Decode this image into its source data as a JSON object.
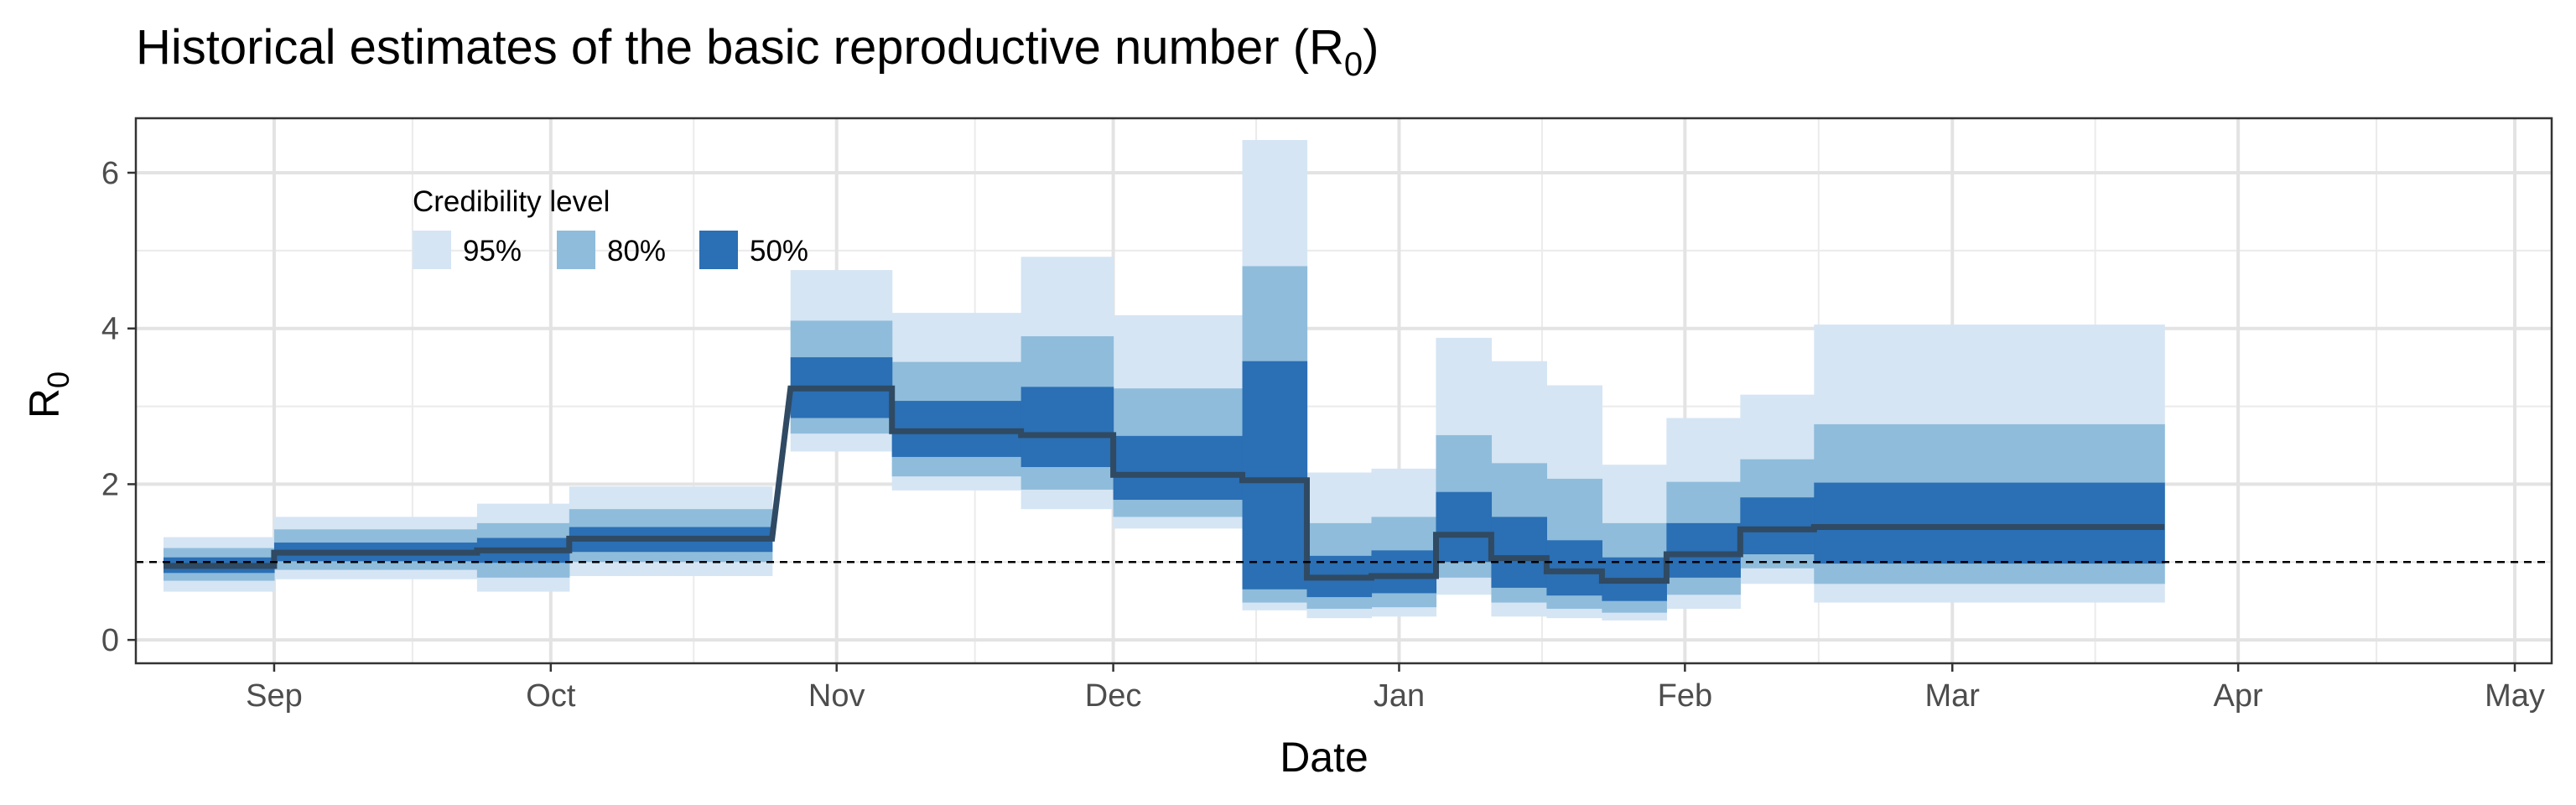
{
  "chart_data": {
    "type": "area",
    "title": {
      "main": "Historical estimates of the basic reproductive number (R",
      "sub": "0",
      "close": ")"
    },
    "xlabel": "Date",
    "ylabel": {
      "main": "R",
      "sub": "0"
    },
    "x_ticks": [
      {
        "label": "Sep",
        "date": "2019-09-01"
      },
      {
        "label": "Oct",
        "date": "2019-10-01"
      },
      {
        "label": "Nov",
        "date": "2019-11-01"
      },
      {
        "label": "Dec",
        "date": "2019-12-01"
      },
      {
        "label": "Jan",
        "date": "2020-01-01"
      },
      {
        "label": "Feb",
        "date": "2020-02-01"
      },
      {
        "label": "Mar",
        "date": "2020-03-01"
      },
      {
        "label": "Apr",
        "date": "2020-04-01"
      },
      {
        "label": "May",
        "date": "2020-05-01"
      }
    ],
    "xlim": [
      "2019-08-17",
      "2020-05-05"
    ],
    "y_ticks": [
      0,
      2,
      4,
      6
    ],
    "ylim": [
      -0.3,
      6.7
    ],
    "grid": true,
    "reference_line": {
      "y": 1,
      "style": "dashed"
    },
    "legend": {
      "title": "Credibility level",
      "position": "top-left",
      "entries": [
        {
          "label": "95%",
          "color": "#d5e5f4"
        },
        {
          "label": "80%",
          "color": "#8fbcdb"
        },
        {
          "label": "50%",
          "color": "#2b6fb4"
        }
      ]
    },
    "colors": {
      "median": "#2f4a62",
      "band95": "#d5e5f4",
      "band80": "#8fbcdb",
      "band50": "#2b6fb4"
    },
    "series": [
      {
        "start": "2019-08-20",
        "end": "2019-09-01",
        "median": 0.95,
        "lo95": 0.62,
        "hi95": 1.32,
        "lo80": 0.76,
        "hi80": 1.18,
        "lo50": 0.86,
        "hi50": 1.06
      },
      {
        "start": "2019-09-01",
        "end": "2019-09-23",
        "median": 1.12,
        "lo95": 0.78,
        "hi95": 1.58,
        "lo80": 0.9,
        "hi80": 1.42,
        "lo50": 1.01,
        "hi50": 1.25
      },
      {
        "start": "2019-09-23",
        "end": "2019-10-03",
        "median": 1.15,
        "lo95": 0.62,
        "hi95": 1.75,
        "lo80": 0.8,
        "hi80": 1.5,
        "lo50": 0.99,
        "hi50": 1.31
      },
      {
        "start": "2019-10-03",
        "end": "2019-10-25",
        "median": 1.3,
        "lo95": 0.82,
        "hi95": 1.97,
        "lo80": 1.0,
        "hi80": 1.68,
        "lo50": 1.13,
        "hi50": 1.45
      },
      {
        "start": "2019-10-27",
        "end": "2019-11-07",
        "median": 3.23,
        "lo95": 2.42,
        "hi95": 4.75,
        "lo80": 2.65,
        "hi80": 4.1,
        "lo50": 2.85,
        "hi50": 3.63
      },
      {
        "start": "2019-11-07",
        "end": "2019-11-21",
        "median": 2.68,
        "lo95": 1.92,
        "hi95": 4.2,
        "lo80": 2.1,
        "hi80": 3.57,
        "lo50": 2.35,
        "hi50": 3.07
      },
      {
        "start": "2019-11-21",
        "end": "2019-12-01",
        "median": 2.63,
        "lo95": 1.68,
        "hi95": 4.92,
        "lo80": 1.93,
        "hi80": 3.9,
        "lo50": 2.22,
        "hi50": 3.25
      },
      {
        "start": "2019-12-01",
        "end": "2019-12-15",
        "median": 2.12,
        "lo95": 1.43,
        "hi95": 4.17,
        "lo80": 1.58,
        "hi80": 3.23,
        "lo50": 1.8,
        "hi50": 2.62
      },
      {
        "start": "2019-12-15",
        "end": "2019-12-22",
        "median": 2.05,
        "lo95": 0.38,
        "hi95": 6.42,
        "lo80": 0.48,
        "hi80": 4.8,
        "lo50": 0.65,
        "hi50": 3.58
      },
      {
        "start": "2019-12-22",
        "end": "2019-12-29",
        "median": 0.8,
        "lo95": 0.28,
        "hi95": 2.15,
        "lo80": 0.4,
        "hi80": 1.5,
        "lo50": 0.55,
        "hi50": 1.08
      },
      {
        "start": "2019-12-29",
        "end": "2020-01-05",
        "median": 0.82,
        "lo95": 0.3,
        "hi95": 2.2,
        "lo80": 0.42,
        "hi80": 1.58,
        "lo50": 0.6,
        "hi50": 1.15
      },
      {
        "start": "2020-01-05",
        "end": "2020-01-11",
        "median": 1.35,
        "lo95": 0.58,
        "hi95": 3.88,
        "lo80": 0.8,
        "hi80": 2.63,
        "lo50": 1.0,
        "hi50": 1.9
      },
      {
        "start": "2020-01-11",
        "end": "2020-01-17",
        "median": 1.05,
        "lo95": 0.3,
        "hi95": 3.58,
        "lo80": 0.48,
        "hi80": 2.27,
        "lo50": 0.67,
        "hi50": 1.58
      },
      {
        "start": "2020-01-17",
        "end": "2020-01-23",
        "median": 0.88,
        "lo95": 0.28,
        "hi95": 3.27,
        "lo80": 0.4,
        "hi80": 2.07,
        "lo50": 0.57,
        "hi50": 1.28
      },
      {
        "start": "2020-01-23",
        "end": "2020-01-30",
        "median": 0.76,
        "lo95": 0.25,
        "hi95": 2.25,
        "lo80": 0.35,
        "hi80": 1.5,
        "lo50": 0.5,
        "hi50": 1.06
      },
      {
        "start": "2020-01-30",
        "end": "2020-02-07",
        "median": 1.1,
        "lo95": 0.4,
        "hi95": 2.85,
        "lo80": 0.58,
        "hi80": 2.03,
        "lo50": 0.8,
        "hi50": 1.5
      },
      {
        "start": "2020-02-07",
        "end": "2020-02-15",
        "median": 1.42,
        "lo95": 0.72,
        "hi95": 3.15,
        "lo80": 0.92,
        "hi80": 2.32,
        "lo50": 1.1,
        "hi50": 1.83
      },
      {
        "start": "2020-02-15",
        "end": "2020-03-24",
        "median": 1.45,
        "lo95": 0.48,
        "hi95": 4.05,
        "lo80": 0.72,
        "hi80": 2.77,
        "lo50": 0.98,
        "hi50": 2.02
      }
    ]
  }
}
